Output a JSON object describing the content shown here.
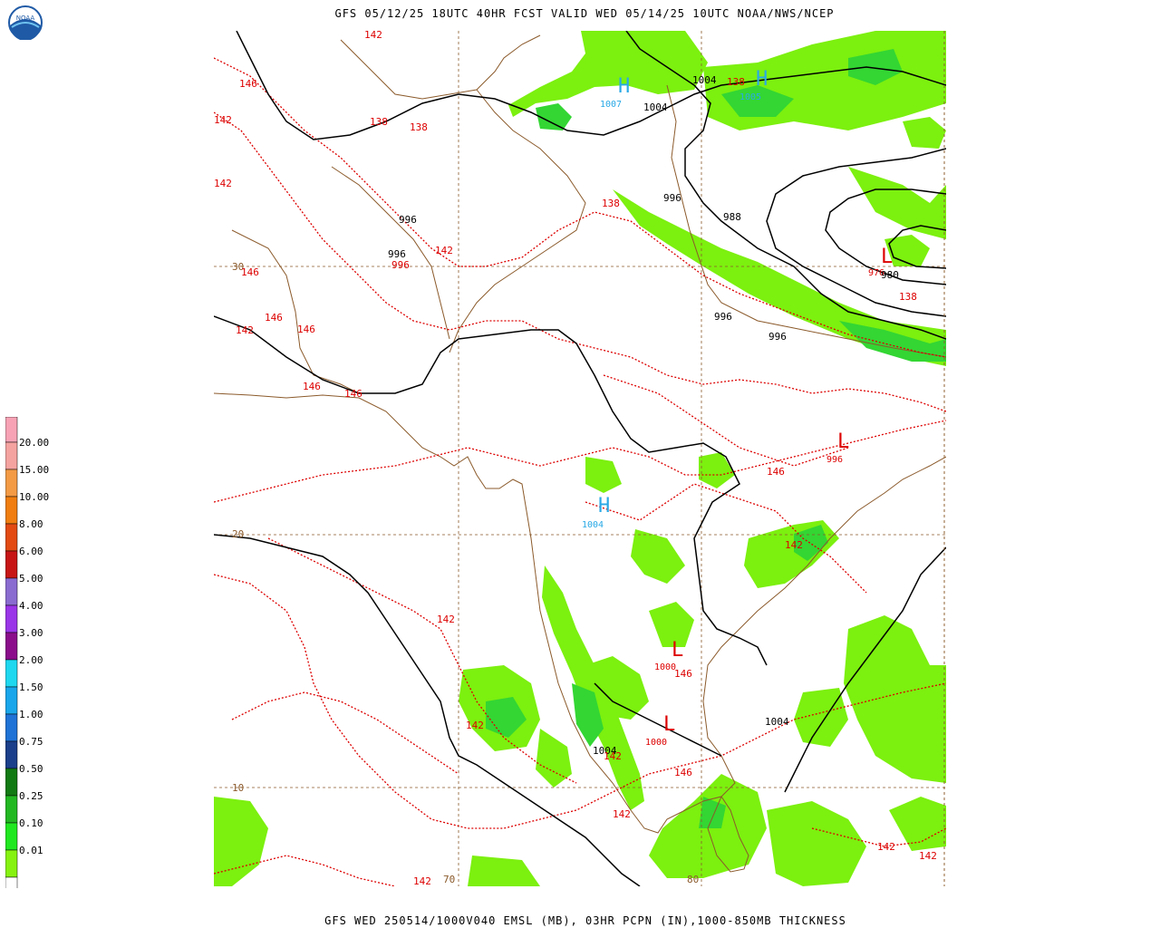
{
  "header": {
    "title": "GFS 05/12/25 18UTC 40HR FCST VALID WED 05/14/25 10UTC NOAA/NWS/NCEP",
    "logo_text": "NOAA"
  },
  "footer": {
    "title": "GFS WED 250514/1000V040 EMSL (MB), 03HR PCPN (IN),1000-850MB THICKNESS"
  },
  "legend": {
    "items": [
      {
        "label": "",
        "color": "#f7a3b5"
      },
      {
        "label": "20.00",
        "color": "#f5a3a0"
      },
      {
        "label": "15.00",
        "color": "#f39a45"
      },
      {
        "label": "10.00",
        "color": "#f07e10"
      },
      {
        "label": "8.00",
        "color": "#e24a12"
      },
      {
        "label": "6.00",
        "color": "#c71515"
      },
      {
        "label": "5.00",
        "color": "#8a6bd0"
      },
      {
        "label": "4.00",
        "color": "#9b35e8"
      },
      {
        "label": "3.00",
        "color": "#8b0d8b"
      },
      {
        "label": "2.00",
        "color": "#1ed8f0"
      },
      {
        "label": "1.50",
        "color": "#19a6ea"
      },
      {
        "label": "1.00",
        "color": "#1f72d6"
      },
      {
        "label": "0.75",
        "color": "#1b3f8a"
      },
      {
        "label": "0.50",
        "color": "#127a12"
      },
      {
        "label": "0.25",
        "color": "#22b822"
      },
      {
        "label": "0.10",
        "color": "#20e820"
      },
      {
        "label": "0.01",
        "color": "#86f20f"
      },
      {
        "label": "",
        "color": "#ffffff"
      }
    ]
  },
  "map": {
    "colors": {
      "isobar": "#000000",
      "thickness": "#dd0000",
      "coast": "#8b5a2b",
      "precip_light": "#7cf00f",
      "precip_mid": "#33d633",
      "high": "#2aa9e6",
      "low": "#dd0000",
      "grid": "#8b5a2b"
    },
    "grid_labels": {
      "lat30": "30",
      "lat20": "20",
      "lat10": "10",
      "lon70": "70",
      "lon80": "80"
    },
    "highs": [
      {
        "letter": "H",
        "value": "1007"
      },
      {
        "letter": "H",
        "value": "1005"
      },
      {
        "letter": "H",
        "value": "1004"
      }
    ],
    "lows": [
      {
        "letter": "L",
        "value": "976"
      },
      {
        "letter": "L",
        "value": "996"
      },
      {
        "letter": "L",
        "value": "1000"
      },
      {
        "letter": "L",
        "value": "1000"
      }
    ],
    "isobar_labels": [
      "1004",
      "1004",
      "996",
      "996",
      "996",
      "988",
      "980",
      "996",
      "996",
      "1004",
      "1004"
    ],
    "thickness_labels": [
      "142",
      "146",
      "142",
      "138",
      "138",
      "138",
      "142",
      "142",
      "146",
      "146",
      "142",
      "146",
      "146",
      "146",
      "142",
      "146",
      "142",
      "142",
      "146",
      "146",
      "142",
      "142",
      "138",
      "138",
      "142",
      "142",
      "996",
      "142"
    ]
  }
}
